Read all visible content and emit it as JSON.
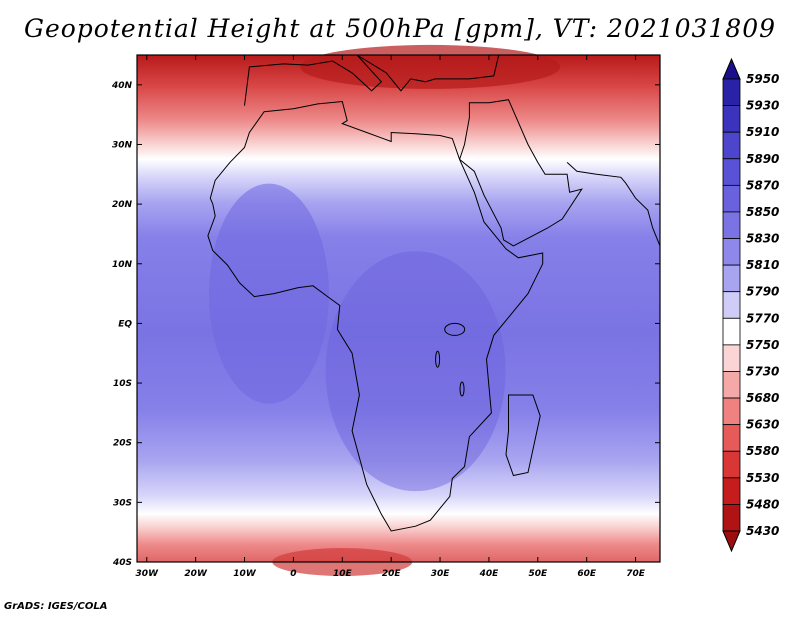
{
  "title": "Geopotential Height at 500hPa [gpm], VT: 2021031809",
  "footer": "GrADS: IGES/COLA",
  "map": {
    "variable": "Geopotential Height",
    "level": "500hPa",
    "units": "gpm",
    "valid_time": "2021031809",
    "lon_range": [
      -32,
      75
    ],
    "lat_range": [
      -40,
      45
    ],
    "lon_ticks": [
      {
        "value": -30,
        "label": "30W"
      },
      {
        "value": -20,
        "label": "20W"
      },
      {
        "value": -10,
        "label": "10W"
      },
      {
        "value": 0,
        "label": "0"
      },
      {
        "value": 10,
        "label": "10E"
      },
      {
        "value": 20,
        "label": "20E"
      },
      {
        "value": 30,
        "label": "30E"
      },
      {
        "value": 40,
        "label": "40E"
      },
      {
        "value": 50,
        "label": "50E"
      },
      {
        "value": 60,
        "label": "60E"
      },
      {
        "value": 70,
        "label": "70E"
      }
    ],
    "lat_ticks": [
      {
        "value": 40,
        "label": "40N"
      },
      {
        "value": 30,
        "label": "30N"
      },
      {
        "value": 20,
        "label": "20N"
      },
      {
        "value": 10,
        "label": "10N"
      },
      {
        "value": 0,
        "label": "EQ"
      },
      {
        "value": -10,
        "label": "10S"
      },
      {
        "value": -20,
        "label": "20S"
      },
      {
        "value": -30,
        "label": "30S"
      },
      {
        "value": -40,
        "label": "40S"
      }
    ]
  },
  "colorbar": {
    "levels": [
      5950,
      5930,
      5910,
      5890,
      5870,
      5850,
      5830,
      5810,
      5790,
      5770,
      5750,
      5730,
      5680,
      5630,
      5580,
      5530,
      5480,
      5430
    ],
    "colors": [
      "#1a0f8c",
      "#2a22a6",
      "#3b33bd",
      "#4d45cc",
      "#5a52d6",
      "#6961de",
      "#7a73e3",
      "#8e88ea",
      "#a8a4f0",
      "#cfcdf8",
      "#ffffff",
      "#fbd5d5",
      "#f5a8a8",
      "#ef8181",
      "#e65a5a",
      "#d93636",
      "#c51d1d",
      "#b01313",
      "#9c0d0d"
    ]
  }
}
